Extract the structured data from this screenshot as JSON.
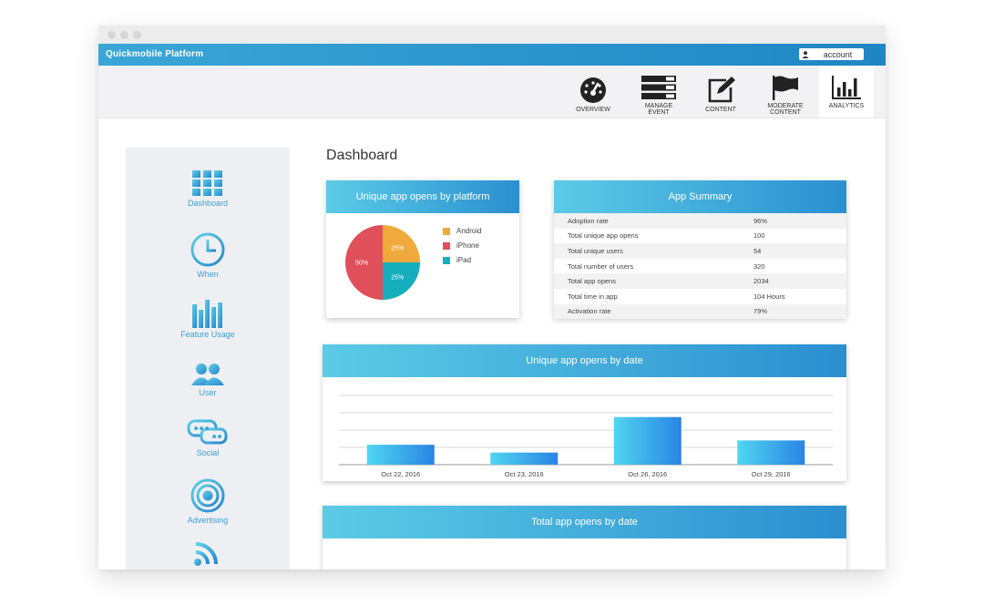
{
  "app": {
    "title": "Quickmobile Platform",
    "account_label": "account"
  },
  "topnav": [
    {
      "label": "OVERVIEW",
      "icon": "speedometer-icon"
    },
    {
      "label": "MANAGE\nEVENT",
      "icon": "list-icon"
    },
    {
      "label": "CONTENT",
      "icon": "edit-icon"
    },
    {
      "label": "MODERATE\nCONTENT",
      "icon": "flag-icon"
    },
    {
      "label": "ANALYTICS",
      "icon": "bar-chart-icon",
      "active": true
    }
  ],
  "sidebar": [
    {
      "label": "Dashboard",
      "icon": "grid-icon"
    },
    {
      "label": "When",
      "icon": "clock-icon"
    },
    {
      "label": "Feature Usage",
      "icon": "bars-icon"
    },
    {
      "label": "User",
      "icon": "users-icon"
    },
    {
      "label": "Social",
      "icon": "chat-icon"
    },
    {
      "label": "Advertising",
      "icon": "target-icon"
    },
    {
      "label": "",
      "icon": "rss-icon"
    }
  ],
  "page": {
    "title": "Dashboard"
  },
  "pie_card": {
    "title": "Unique app opens by platform",
    "legend": [
      {
        "name": "Android",
        "color": "#f0a93b"
      },
      {
        "name": "iPhone",
        "color": "#e0505a"
      },
      {
        "name": "iPad",
        "color": "#16aebc"
      }
    ]
  },
  "summary_card": {
    "title": "App Summary",
    "rows": [
      {
        "label": "Adoption rate",
        "value": "96%"
      },
      {
        "label": "Total unique app opens",
        "value": "100"
      },
      {
        "label": "Total unique users",
        "value": "54"
      },
      {
        "label": "Total number of users",
        "value": "320"
      },
      {
        "label": "Total app opens",
        "value": "2034"
      },
      {
        "label": "Total time in app",
        "value": "104 Hours"
      },
      {
        "label": "Activation rate",
        "value": "79%"
      }
    ]
  },
  "date_card": {
    "title": "Unique app opens by date"
  },
  "total_card": {
    "title": "Total app opens by date"
  },
  "chart_data": [
    {
      "type": "pie",
      "title": "Unique app opens by platform",
      "categories": [
        "Android",
        "iPad",
        "iPhone"
      ],
      "values": [
        25,
        25,
        50
      ],
      "labels": [
        "25%",
        "25%",
        "50%"
      ],
      "colors": [
        "#f0a93b",
        "#16aebc",
        "#e0505a"
      ]
    },
    {
      "type": "bar",
      "title": "Unique app opens by date",
      "categories": [
        "Oct 22, 2016",
        "Oct 23, 2016",
        "Oct 26, 2016",
        "Oct 29, 2016"
      ],
      "values": [
        23,
        14,
        55,
        28
      ],
      "ylim": [
        0,
        80
      ],
      "grid": true
    }
  ]
}
